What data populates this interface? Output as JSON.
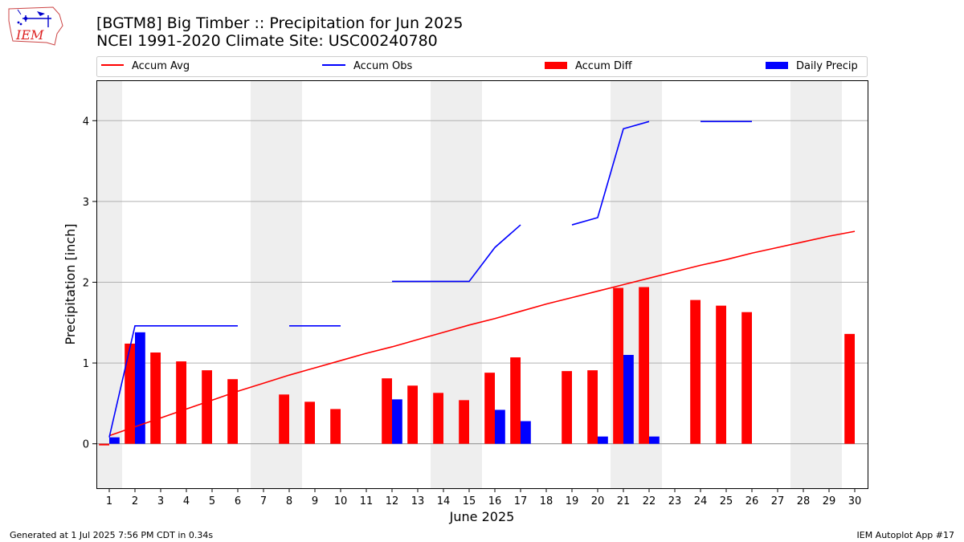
{
  "header": {
    "title_line1": "[BGTM8] Big Timber :: Precipitation for Jun 2025",
    "title_line2": "NCEI 1991-2020 Climate Site: USC00240780",
    "logo_text": "IEM"
  },
  "footer": {
    "left": "Generated at 1 Jul 2025 7:56 PM CDT in 0.34s",
    "right": "IEM Autoplot App #17"
  },
  "colors": {
    "avg": "#ff0000",
    "obs": "#0000ff",
    "diff": "#ff0000",
    "daily": "#0000ff",
    "weekend_shade": "#eeeeee",
    "grid": "#b0b0b0"
  },
  "chart_data": {
    "type": "bar",
    "xlabel": "June 2025",
    "ylabel": "Precipitation [inch]",
    "xlim": [
      0.5,
      30.5
    ],
    "ylim": [
      -0.55,
      4.5
    ],
    "yticks": [
      0,
      1,
      2,
      3,
      4
    ],
    "grid": "horizontal",
    "legend_position": "top",
    "days": [
      1,
      2,
      3,
      4,
      5,
      6,
      7,
      8,
      9,
      10,
      11,
      12,
      13,
      14,
      15,
      16,
      17,
      18,
      19,
      20,
      21,
      22,
      23,
      24,
      25,
      26,
      27,
      28,
      29,
      30
    ],
    "weekend_shading": [
      [
        0.5,
        1.5
      ],
      [
        6.5,
        8.5
      ],
      [
        13.5,
        15.5
      ],
      [
        20.5,
        22.5
      ],
      [
        27.5,
        29.5
      ]
    ],
    "series": [
      {
        "name": "Accum Avg",
        "kind": "line",
        "values": [
          0.1,
          0.21,
          0.32,
          0.43,
          0.54,
          0.65,
          0.75,
          0.85,
          0.94,
          1.03,
          1.12,
          1.2,
          1.29,
          1.38,
          1.47,
          1.55,
          1.64,
          1.73,
          1.81,
          1.89,
          1.97,
          2.05,
          2.13,
          2.21,
          2.28,
          2.36,
          2.43,
          2.5,
          2.57,
          2.63
        ]
      },
      {
        "name": "Accum Obs",
        "kind": "line",
        "values": [
          0.08,
          1.46,
          1.46,
          1.46,
          1.46,
          1.46,
          null,
          1.46,
          1.46,
          1.46,
          null,
          2.01,
          2.01,
          2.01,
          2.01,
          2.43,
          2.71,
          null,
          2.71,
          2.8,
          3.9,
          3.99,
          null,
          3.99,
          3.99,
          3.99,
          null,
          null,
          null,
          null
        ]
      },
      {
        "name": "Accum Diff",
        "kind": "bar",
        "values": [
          -0.02,
          1.24,
          1.13,
          1.02,
          0.91,
          0.8,
          null,
          0.61,
          0.52,
          0.43,
          null,
          0.81,
          0.72,
          0.63,
          0.54,
          0.88,
          1.07,
          null,
          0.9,
          0.91,
          1.93,
          1.94,
          null,
          1.78,
          1.71,
          1.63,
          null,
          null,
          null,
          1.36
        ]
      },
      {
        "name": "Daily Precip",
        "kind": "bar",
        "values": [
          0.08,
          1.38,
          0,
          0,
          0,
          0,
          null,
          0,
          0,
          0,
          null,
          0.55,
          0,
          0,
          0,
          0.42,
          0.28,
          null,
          0,
          0.09,
          1.1,
          0.09,
          null,
          0,
          0,
          0,
          null,
          null,
          null,
          0
        ]
      }
    ]
  }
}
